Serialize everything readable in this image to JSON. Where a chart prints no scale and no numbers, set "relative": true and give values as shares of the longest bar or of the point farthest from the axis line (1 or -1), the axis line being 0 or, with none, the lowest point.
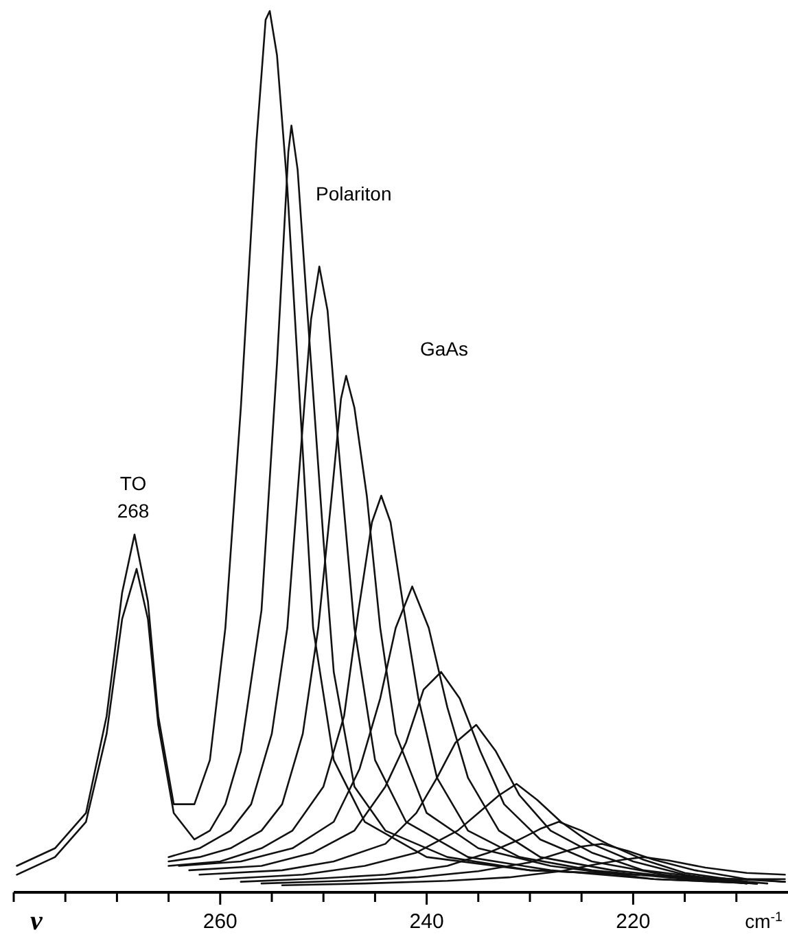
{
  "chart_data": {
    "type": "line",
    "relative": true,
    "xlabel": "cm$^{-1}$",
    "xlim": [
      280,
      205
    ],
    "xticks": [
      {
        "value": 280,
        "label": null
      },
      {
        "value": 275,
        "label": null
      },
      {
        "value": 270,
        "label": null
      },
      {
        "value": 265,
        "label": null
      },
      260,
      {
        "value": 255,
        "label": null
      },
      {
        "value": 250,
        "label": null
      },
      {
        "value": 245,
        "label": null
      },
      240,
      {
        "value": 235,
        "label": null
      },
      {
        "value": 230,
        "label": null
      },
      {
        "value": 225,
        "label": null
      },
      220,
      {
        "value": 215,
        "label": null
      },
      {
        "value": 210,
        "label": null
      }
    ],
    "annotations": [
      "TO 268",
      "Polariton",
      "GaAs",
      "ν"
    ],
    "grid": false,
    "marker": "none",
    "line_style": "solid",
    "series": [
      {
        "color": "#111111",
        "x": [
          279.7,
          276,
          273,
          271,
          269.5,
          268.3,
          267,
          266,
          264.5,
          262.5,
          261,
          259.5,
          258,
          256.5,
          255.6,
          255.2,
          254.5,
          253.5,
          252,
          251,
          249,
          246,
          240,
          230,
          220,
          210,
          205.3
        ],
        "values": [
          0.03,
          0.05,
          0.09,
          0.2,
          0.34,
          0.406,
          0.33,
          0.2,
          0.1,
          0.1,
          0.15,
          0.3,
          0.55,
          0.85,
          0.99,
          1.0,
          0.95,
          0.8,
          0.5,
          0.3,
          0.15,
          0.08,
          0.04,
          0.025,
          0.02,
          0.015,
          0.015
        ]
      },
      {
        "color": "#111111",
        "x": [
          279.7,
          276,
          273,
          271,
          269.5,
          268.1,
          267,
          266,
          264.5,
          262.5,
          261,
          259.5,
          258,
          256,
          254.5,
          253.4,
          253.1,
          252.5,
          251.5,
          250,
          249,
          247,
          244,
          238,
          230,
          220,
          210,
          205.3
        ],
        "values": [
          0.02,
          0.04,
          0.08,
          0.18,
          0.31,
          0.367,
          0.31,
          0.19,
          0.09,
          0.06,
          0.07,
          0.1,
          0.16,
          0.32,
          0.6,
          0.84,
          0.87,
          0.82,
          0.65,
          0.4,
          0.25,
          0.12,
          0.07,
          0.04,
          0.025,
          0.02,
          0.015,
          0.012
        ]
      },
      {
        "color": "#111111",
        "x": [
          265,
          262,
          259,
          257,
          255,
          253.5,
          252.2,
          251.2,
          250.4,
          249.6,
          248.5,
          247,
          245,
          242,
          236,
          228,
          218,
          208
        ],
        "values": [
          0.04,
          0.05,
          0.07,
          0.1,
          0.18,
          0.3,
          0.5,
          0.65,
          0.71,
          0.66,
          0.5,
          0.3,
          0.15,
          0.08,
          0.04,
          0.025,
          0.015,
          0.01
        ]
      },
      {
        "color": "#111111",
        "x": [
          265,
          262,
          259,
          256,
          254,
          252,
          250.5,
          249.2,
          248.3,
          247.8,
          247,
          245.8,
          244.5,
          243,
          240,
          235,
          228,
          218,
          208
        ],
        "values": [
          0.035,
          0.04,
          0.05,
          0.07,
          0.1,
          0.18,
          0.3,
          0.45,
          0.56,
          0.586,
          0.55,
          0.45,
          0.3,
          0.18,
          0.09,
          0.05,
          0.03,
          0.015,
          0.01
        ]
      },
      {
        "color": "#111111",
        "x": [
          265,
          260,
          256,
          253,
          250,
          248,
          246.6,
          245.3,
          244.4,
          243.5,
          242.2,
          240.8,
          239,
          236,
          231,
          224,
          215,
          208
        ],
        "values": [
          0.03,
          0.035,
          0.05,
          0.07,
          0.12,
          0.2,
          0.32,
          0.42,
          0.45,
          0.42,
          0.32,
          0.22,
          0.13,
          0.07,
          0.04,
          0.025,
          0.015,
          0.01
        ]
      },
      {
        "color": "#111111",
        "x": [
          264,
          258,
          253,
          249,
          246.5,
          244.5,
          243,
          241.4,
          239.8,
          238,
          236,
          233,
          229,
          222,
          214,
          208
        ],
        "values": [
          0.03,
          0.035,
          0.05,
          0.08,
          0.14,
          0.22,
          0.3,
          0.347,
          0.3,
          0.21,
          0.13,
          0.07,
          0.04,
          0.025,
          0.015,
          0.01
        ]
      },
      {
        "color": "#111111",
        "x": [
          263,
          256,
          251,
          247,
          244,
          242,
          240.3,
          238.6,
          236.8,
          234.8,
          232.5,
          229,
          224,
          217,
          209
        ],
        "values": [
          0.025,
          0.03,
          0.045,
          0.07,
          0.12,
          0.17,
          0.23,
          0.25,
          0.22,
          0.16,
          0.1,
          0.06,
          0.035,
          0.02,
          0.01
        ]
      },
      {
        "color": "#111111",
        "x": [
          262,
          254,
          249,
          244,
          241,
          239,
          237.2,
          235.2,
          233.3,
          231,
          228,
          224,
          219,
          212,
          207
        ],
        "values": [
          0.02,
          0.025,
          0.035,
          0.055,
          0.09,
          0.13,
          0.17,
          0.19,
          0.16,
          0.11,
          0.07,
          0.045,
          0.025,
          0.015,
          0.01
        ]
      },
      {
        "color": "#111111",
        "x": [
          260,
          252,
          246,
          241,
          237,
          235,
          233,
          231.3,
          229.3,
          227,
          224,
          220,
          215,
          209
        ],
        "values": [
          0.015,
          0.02,
          0.03,
          0.045,
          0.07,
          0.09,
          0.11,
          0.123,
          0.105,
          0.08,
          0.055,
          0.035,
          0.02,
          0.01
        ]
      },
      {
        "color": "#111111",
        "x": [
          258,
          250,
          244,
          238,
          234,
          231,
          229,
          227.2,
          225,
          222.5,
          219,
          215,
          209
        ],
        "values": [
          0.012,
          0.016,
          0.02,
          0.03,
          0.045,
          0.06,
          0.072,
          0.08,
          0.07,
          0.055,
          0.037,
          0.022,
          0.012
        ]
      },
      {
        "color": "#111111",
        "x": [
          256,
          248,
          241,
          235,
          230,
          227,
          225,
          223,
          220.5,
          218,
          214,
          209,
          205.3
        ],
        "values": [
          0.01,
          0.013,
          0.017,
          0.024,
          0.034,
          0.045,
          0.052,
          0.055,
          0.047,
          0.037,
          0.025,
          0.015,
          0.012
        ]
      },
      {
        "color": "#111111",
        "x": [
          254,
          246,
          238,
          232,
          227,
          224,
          221,
          219,
          216.5,
          213,
          209,
          205.3
        ],
        "values": [
          0.008,
          0.01,
          0.013,
          0.017,
          0.024,
          0.031,
          0.037,
          0.04,
          0.036,
          0.028,
          0.022,
          0.02
        ]
      }
    ]
  }
}
